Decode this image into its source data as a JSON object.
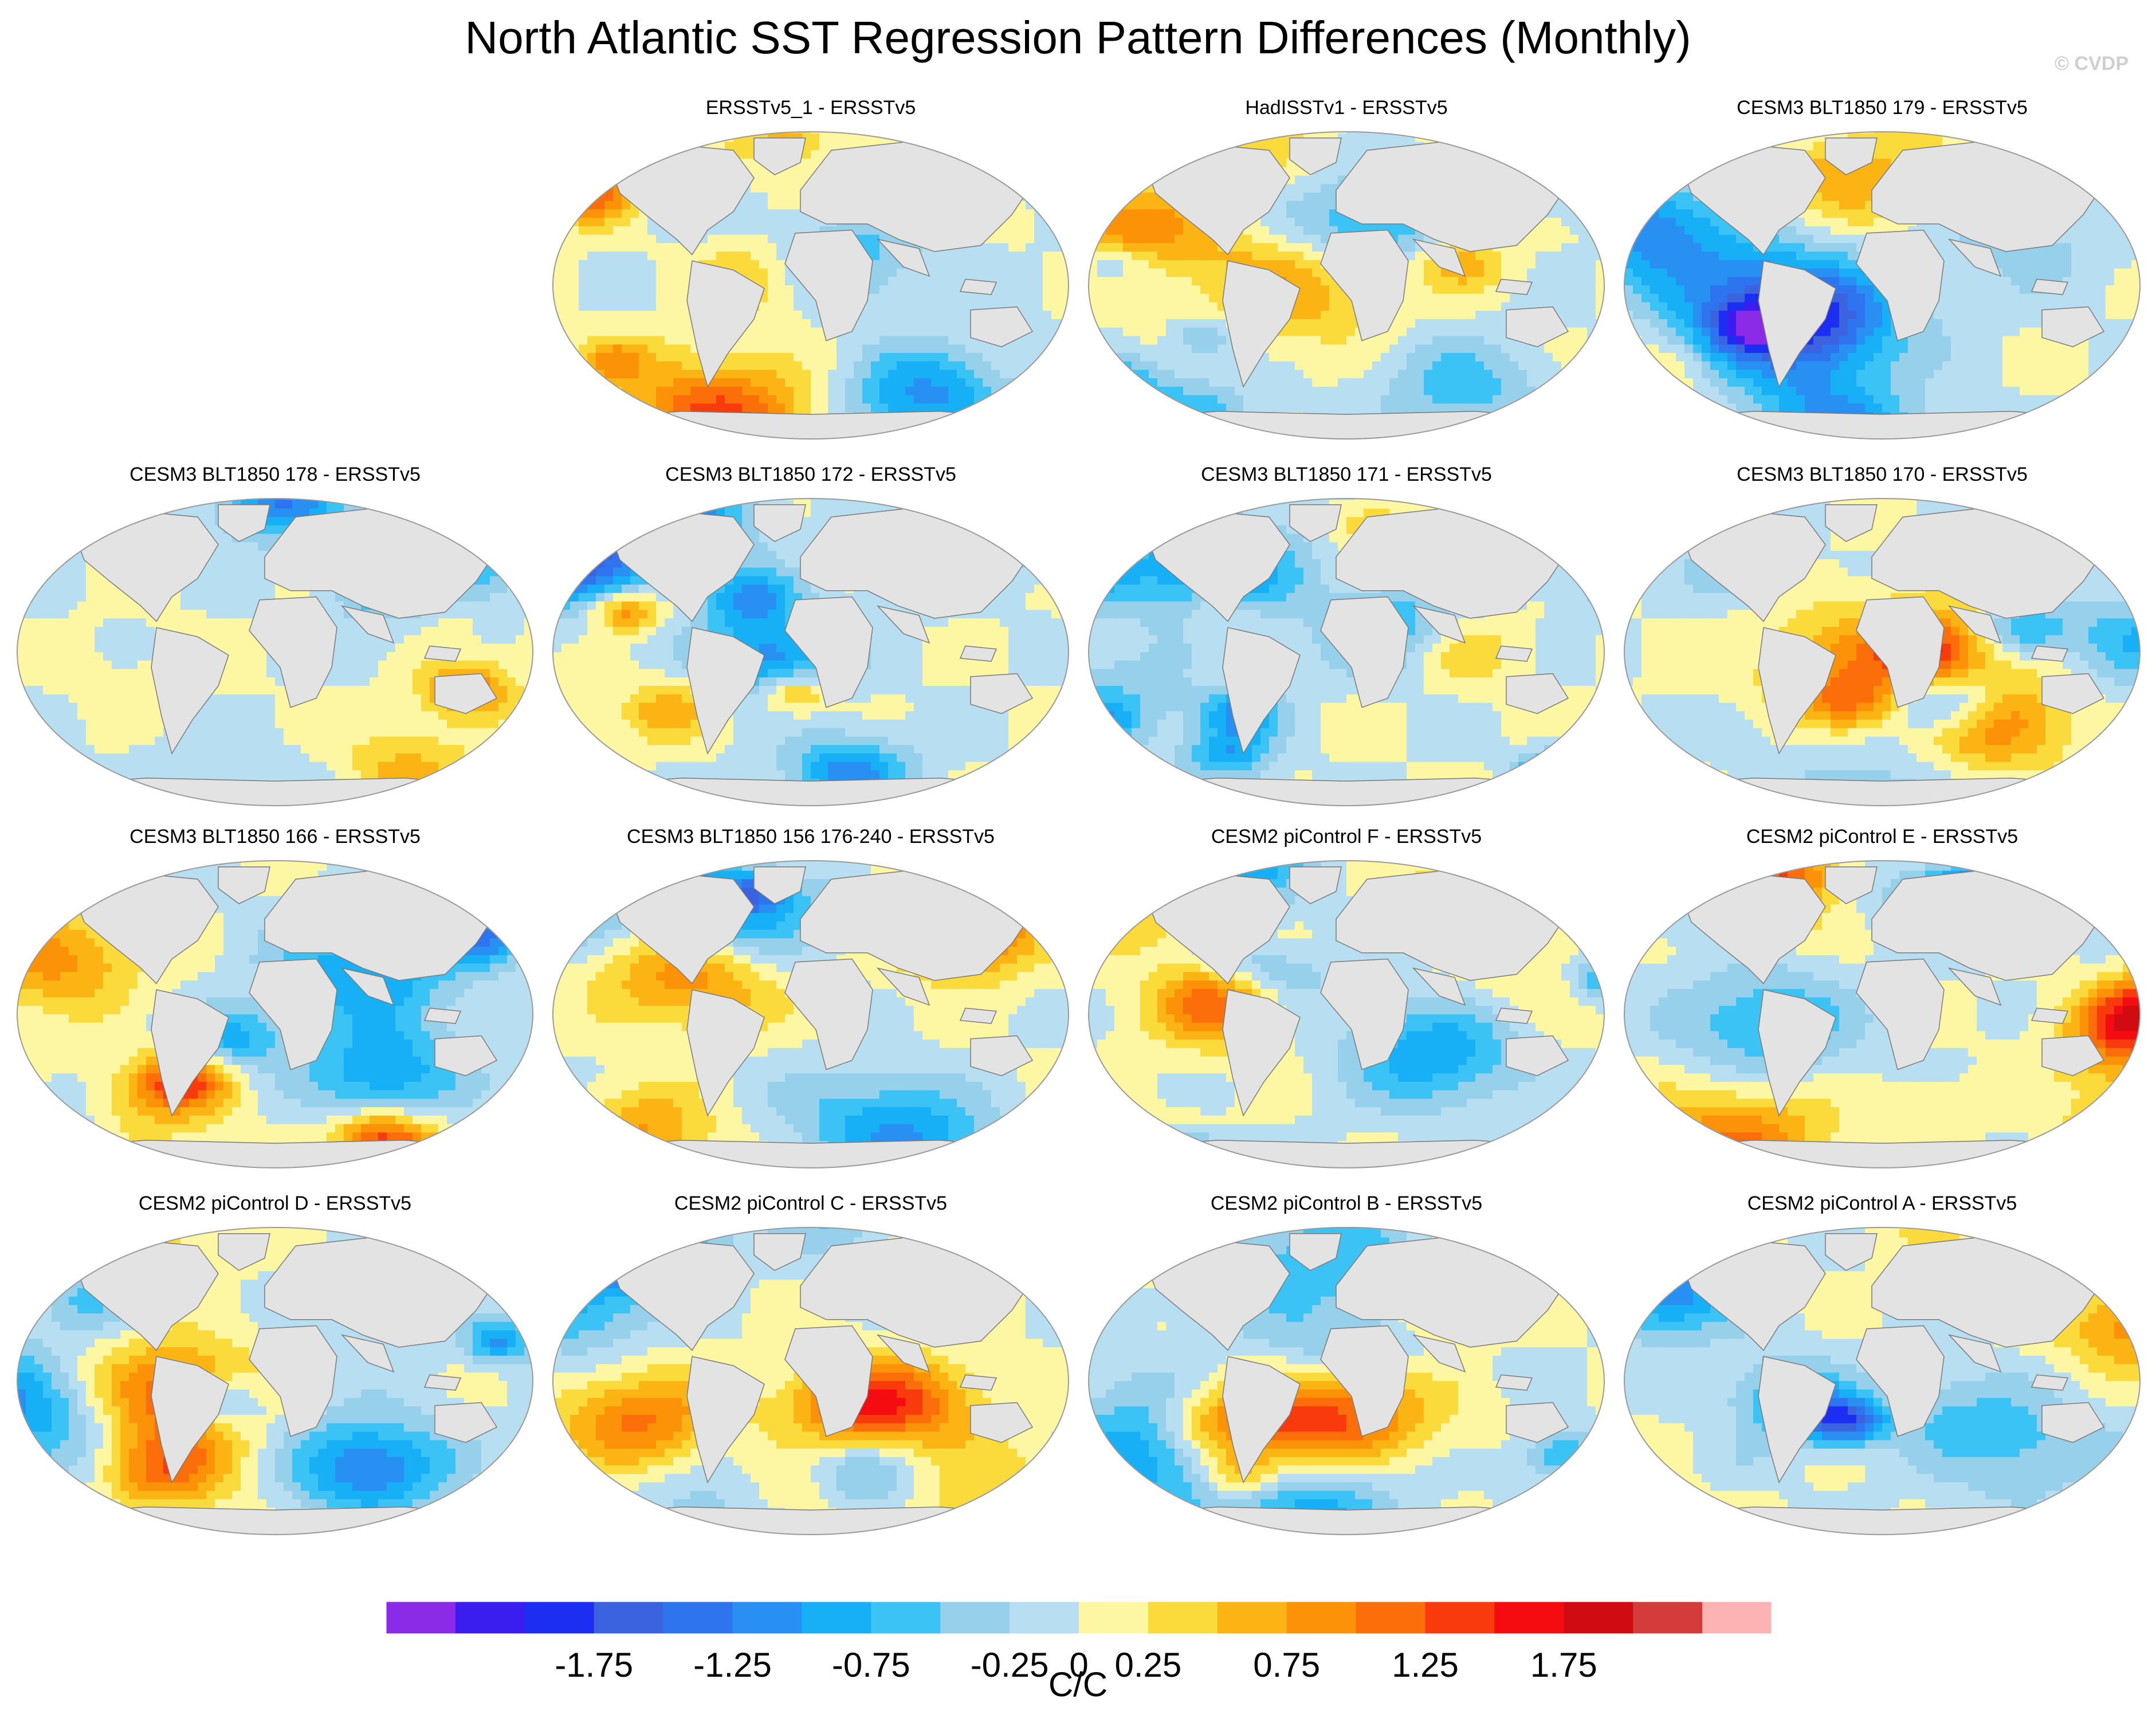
{
  "title": "North Atlantic SST Regression Pattern Differences (Monthly)",
  "credit": "© CVDP",
  "panels": [
    {
      "title": "ERSSTv5_1 - ERSSTv5",
      "row": 0,
      "col": 1,
      "seed": 11
    },
    {
      "title": "HadISSTv1 - ERSSTv5",
      "row": 0,
      "col": 2,
      "seed": 23
    },
    {
      "title": "CESM3 BLT1850 179 - ERSSTv5",
      "row": 0,
      "col": 3,
      "seed": 37
    },
    {
      "title": "CESM3 BLT1850 178 - ERSSTv5",
      "row": 1,
      "col": 0,
      "seed": 41
    },
    {
      "title": "CESM3 BLT1850 172 - ERSSTv5",
      "row": 1,
      "col": 1,
      "seed": 53
    },
    {
      "title": "CESM3 BLT1850 171 - ERSSTv5",
      "row": 1,
      "col": 2,
      "seed": 67
    },
    {
      "title": "CESM3 BLT1850 170 - ERSSTv5",
      "row": 1,
      "col": 3,
      "seed": 71
    },
    {
      "title": "CESM3 BLT1850 166 - ERSSTv5",
      "row": 2,
      "col": 0,
      "seed": 83
    },
    {
      "title": "CESM3 BLT1850 156 176-240 - ERSSTv5",
      "row": 2,
      "col": 1,
      "seed": 97
    },
    {
      "title": "CESM2 piControl F - ERSSTv5",
      "row": 2,
      "col": 2,
      "seed": 101
    },
    {
      "title": "CESM2 piControl E - ERSSTv5",
      "row": 2,
      "col": 3,
      "seed": 113
    },
    {
      "title": "CESM2 piControl D - ERSSTv5",
      "row": 3,
      "col": 0,
      "seed": 127
    },
    {
      "title": "CESM2 piControl C - ERSSTv5",
      "row": 3,
      "col": 1,
      "seed": 131
    },
    {
      "title": "CESM2 piControl B - ERSSTv5",
      "row": 3,
      "col": 2,
      "seed": 149
    },
    {
      "title": "CESM2 piControl A - ERSSTv5",
      "row": 3,
      "col": 3,
      "seed": 157
    }
  ],
  "chart_data": {
    "type": "heatmap",
    "projection": "Robinson",
    "colorbar": {
      "colors": [
        "#8b2be8",
        "#3a1ef0",
        "#1c2ef2",
        "#3b63e0",
        "#2e74ee",
        "#2890f2",
        "#17b0f6",
        "#3cc3f5",
        "#96d0ea",
        "#b8def2",
        "#fdf7a4",
        "#fbdb3c",
        "#fbb414",
        "#fb9208",
        "#fb6e0a",
        "#f83a0c",
        "#f40c10",
        "#d00c12",
        "#d43c3c",
        "#fdb3b3"
      ],
      "boundaries": [
        -2.25,
        -2.0,
        -1.75,
        -1.5,
        -1.25,
        -1.0,
        -0.75,
        -0.5,
        -0.25,
        0,
        0.25,
        0.5,
        0.75,
        1.0,
        1.25,
        1.5,
        1.75,
        2.0,
        2.25
      ],
      "tick_labels": [
        "-1.75",
        "-1.25",
        "-0.75",
        "-0.25",
        "0",
        "0.25",
        "0.75",
        "1.25",
        "1.75"
      ],
      "tick_boundary_index": [
        2,
        4,
        6,
        8,
        9,
        10,
        12,
        14,
        16
      ],
      "units": "C/C"
    }
  }
}
